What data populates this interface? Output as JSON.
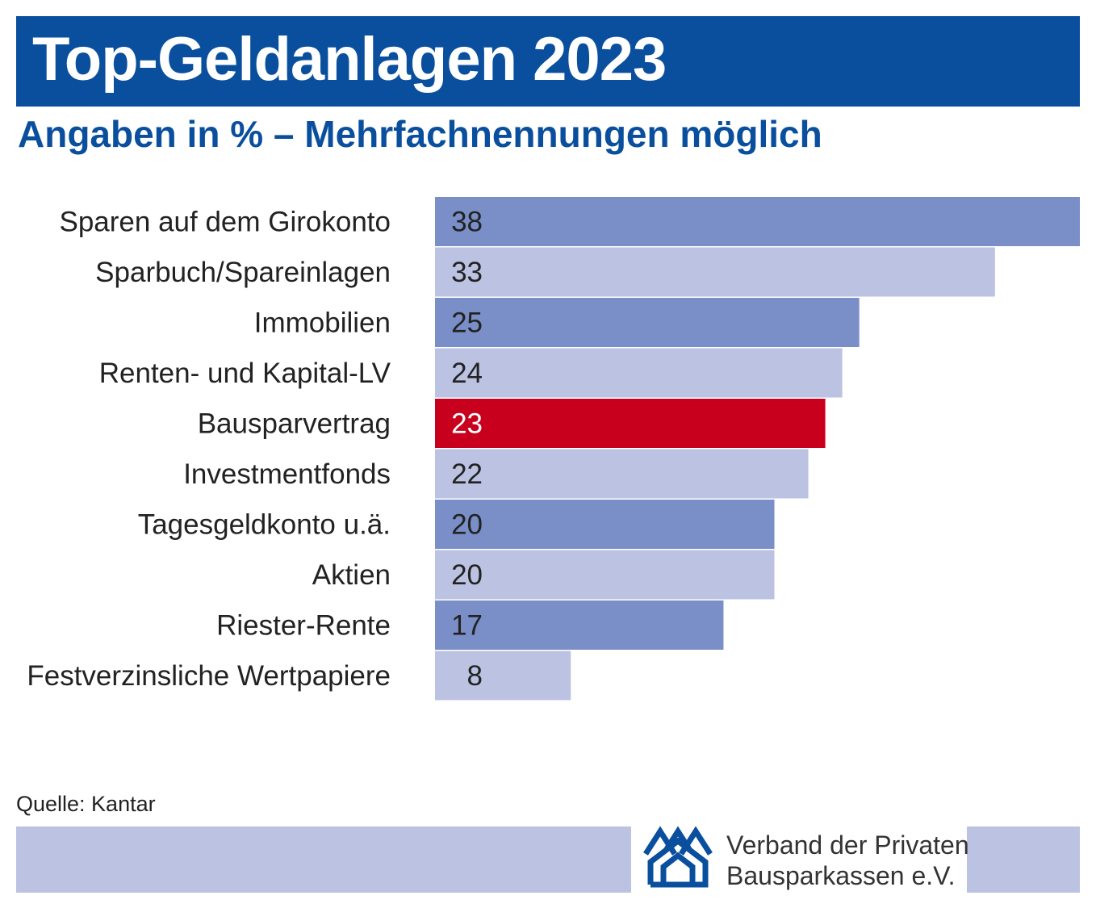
{
  "header": {
    "title": "Top-Geldanlagen 2023",
    "subtitle": "Angaben in % – Mehrfachnennungen möglich"
  },
  "chart_data": {
    "type": "bar",
    "orientation": "horizontal",
    "title": "Top-Geldanlagen 2023",
    "subtitle": "Angaben in % – Mehrfachnennungen möglich",
    "categories": [
      "Sparen auf dem Girokonto",
      "Sparbuch/Spareinlagen",
      "Immobilien",
      "Renten- und Kapital-LV",
      "Bausparvertrag",
      "Investmentfonds",
      "Tagesgeldkonto u.ä.",
      "Aktien",
      "Riester-Rente",
      "Festverzinsliche Wertpapiere"
    ],
    "values": [
      38,
      33,
      25,
      24,
      23,
      22,
      20,
      20,
      17,
      8
    ],
    "xlim": [
      0,
      38
    ],
    "grid": false,
    "legend": "none",
    "colors": {
      "dark": "#7a8ec7",
      "light": "#bcc3e2",
      "highlight": "#c8001e",
      "label": "#222222"
    },
    "bar_colors": [
      "dark",
      "light",
      "dark",
      "light",
      "highlight",
      "light",
      "dark",
      "light",
      "dark",
      "light"
    ]
  },
  "footer": {
    "source": "Quelle: Kantar",
    "logo_line1": "Verband der Privaten",
    "logo_line2": "Bausparkassen e.V.",
    "logo_icon": "houses-icon",
    "band_color": "#bcc3e2",
    "brand_color": "#0a4f9e"
  }
}
